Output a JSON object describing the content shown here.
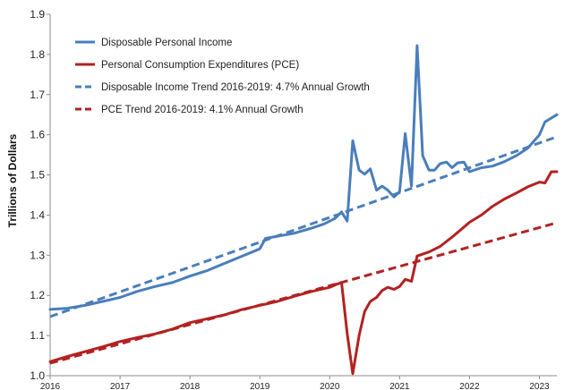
{
  "chart_data": {
    "type": "line",
    "xlabel": "",
    "ylabel": "Trillions of Dollars",
    "ylim": [
      1.0,
      1.9
    ],
    "yticks": [
      "1.0",
      "1.1",
      "1.2",
      "1.3",
      "1.4",
      "1.5",
      "1.6",
      "1.7",
      "1.8",
      "1.9"
    ],
    "xlim": [
      2016.0,
      2023.25
    ],
    "xticks": [
      "2016",
      "2017",
      "2018",
      "2019",
      "2020",
      "2021",
      "2022",
      "2023"
    ],
    "grid": false,
    "legend_position": "top-left",
    "series": [
      {
        "name": "Disposable Personal Income",
        "color": "#4a7ebb",
        "style": "solid",
        "points": [
          [
            2016.0,
            1.165
          ],
          [
            2016.25,
            1.168
          ],
          [
            2016.5,
            1.175
          ],
          [
            2016.75,
            1.185
          ],
          [
            2017.0,
            1.195
          ],
          [
            2017.25,
            1.21
          ],
          [
            2017.5,
            1.222
          ],
          [
            2017.75,
            1.232
          ],
          [
            2018.0,
            1.248
          ],
          [
            2018.25,
            1.262
          ],
          [
            2018.5,
            1.28
          ],
          [
            2018.75,
            1.298
          ],
          [
            2019.0,
            1.316
          ],
          [
            2019.08,
            1.342
          ],
          [
            2019.25,
            1.347
          ],
          [
            2019.5,
            1.355
          ],
          [
            2019.75,
            1.368
          ],
          [
            2019.92,
            1.378
          ],
          [
            2020.0,
            1.385
          ],
          [
            2020.08,
            1.392
          ],
          [
            2020.17,
            1.408
          ],
          [
            2020.25,
            1.385
          ],
          [
            2020.33,
            1.585
          ],
          [
            2020.42,
            1.512
          ],
          [
            2020.5,
            1.502
          ],
          [
            2020.58,
            1.515
          ],
          [
            2020.67,
            1.462
          ],
          [
            2020.75,
            1.472
          ],
          [
            2020.83,
            1.462
          ],
          [
            2020.92,
            1.445
          ],
          [
            2021.0,
            1.458
          ],
          [
            2021.08,
            1.603
          ],
          [
            2021.17,
            1.472
          ],
          [
            2021.25,
            1.822
          ],
          [
            2021.33,
            1.548
          ],
          [
            2021.42,
            1.512
          ],
          [
            2021.5,
            1.512
          ],
          [
            2021.58,
            1.528
          ],
          [
            2021.67,
            1.532
          ],
          [
            2021.75,
            1.518
          ],
          [
            2021.83,
            1.53
          ],
          [
            2021.92,
            1.532
          ],
          [
            2022.0,
            1.508
          ],
          [
            2022.17,
            1.518
          ],
          [
            2022.33,
            1.522
          ],
          [
            2022.5,
            1.533
          ],
          [
            2022.67,
            1.548
          ],
          [
            2022.83,
            1.566
          ],
          [
            2023.0,
            1.6
          ],
          [
            2023.08,
            1.632
          ],
          [
            2023.25,
            1.65
          ]
        ]
      },
      {
        "name": "Personal Consumption Expenditures (PCE)",
        "color": "#b22222",
        "style": "solid",
        "points": [
          [
            2016.0,
            1.035
          ],
          [
            2016.25,
            1.048
          ],
          [
            2016.5,
            1.06
          ],
          [
            2016.75,
            1.072
          ],
          [
            2017.0,
            1.085
          ],
          [
            2017.25,
            1.095
          ],
          [
            2017.5,
            1.104
          ],
          [
            2017.75,
            1.116
          ],
          [
            2018.0,
            1.132
          ],
          [
            2018.25,
            1.142
          ],
          [
            2018.5,
            1.152
          ],
          [
            2018.75,
            1.165
          ],
          [
            2019.0,
            1.175
          ],
          [
            2019.25,
            1.185
          ],
          [
            2019.5,
            1.198
          ],
          [
            2019.75,
            1.21
          ],
          [
            2020.0,
            1.22
          ],
          [
            2020.1,
            1.228
          ],
          [
            2020.17,
            1.232
          ],
          [
            2020.25,
            1.105
          ],
          [
            2020.33,
            1.005
          ],
          [
            2020.42,
            1.1
          ],
          [
            2020.5,
            1.16
          ],
          [
            2020.58,
            1.185
          ],
          [
            2020.67,
            1.195
          ],
          [
            2020.75,
            1.212
          ],
          [
            2020.83,
            1.22
          ],
          [
            2020.92,
            1.215
          ],
          [
            2021.0,
            1.222
          ],
          [
            2021.08,
            1.24
          ],
          [
            2021.17,
            1.235
          ],
          [
            2021.25,
            1.298
          ],
          [
            2021.42,
            1.308
          ],
          [
            2021.58,
            1.322
          ],
          [
            2021.75,
            1.345
          ],
          [
            2021.92,
            1.37
          ],
          [
            2022.0,
            1.382
          ],
          [
            2022.17,
            1.4
          ],
          [
            2022.33,
            1.422
          ],
          [
            2022.5,
            1.44
          ],
          [
            2022.67,
            1.455
          ],
          [
            2022.83,
            1.47
          ],
          [
            2023.0,
            1.482
          ],
          [
            2023.08,
            1.48
          ],
          [
            2023.17,
            1.508
          ],
          [
            2023.25,
            1.508
          ]
        ]
      },
      {
        "name": "Disposable Income Trend 2016-2019: 4.7% Annual Growth",
        "color": "#4a7ebb",
        "style": "dashed",
        "points": [
          [
            2016.0,
            1.147
          ],
          [
            2023.25,
            1.595
          ]
        ]
      },
      {
        "name": "PCE Trend 2016-2019: 4.1% Annual Growth",
        "color": "#b22222",
        "style": "dashed",
        "points": [
          [
            2016.0,
            1.031
          ],
          [
            2023.25,
            1.381
          ]
        ]
      }
    ]
  }
}
